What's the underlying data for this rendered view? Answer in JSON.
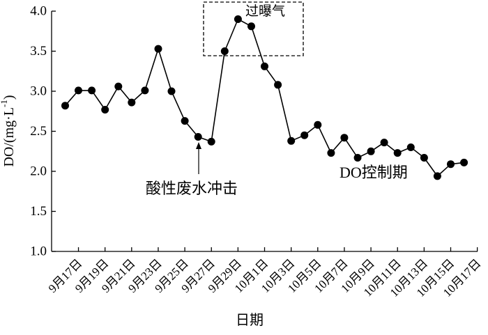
{
  "chart_data": {
    "type": "line",
    "xlabel": "日期",
    "ylabel": {
      "main": "DO/(mg·L",
      "sup": "-1",
      "end": ")"
    },
    "ylim": [
      1.0,
      4.0
    ],
    "grid": false,
    "y_ticks": [
      "1.0",
      "1.5",
      "2.0",
      "2.5",
      "3.0",
      "3.5",
      "4.0"
    ],
    "x_ticks": [
      "9月17日",
      "9月19日",
      "9月21日",
      "9月23日",
      "9月25日",
      "9月27日",
      "9月29日",
      "10月1日",
      "10月3日",
      "10月5日",
      "10月7日",
      "10月9日",
      "10月11日",
      "10月13日",
      "10月15日",
      "10月17日"
    ],
    "x": [
      "9月16日",
      "9月17日",
      "9月18日",
      "9月19日",
      "9月20日",
      "9月21日",
      "9月22日",
      "9月23日",
      "9月24日",
      "9月25日",
      "9月26日",
      "9月27日",
      "9月28日",
      "9月29日",
      "9月30日",
      "10月1日",
      "10月2日",
      "10月3日",
      "10月4日",
      "10月5日",
      "10月6日",
      "10月7日",
      "10月8日",
      "10月9日",
      "10月10日",
      "10月11日",
      "10月12日",
      "10月13日",
      "10月14日",
      "10月15日",
      "10月16日"
    ],
    "y": [
      2.82,
      3.01,
      3.01,
      2.77,
      3.06,
      2.86,
      3.01,
      3.53,
      3.0,
      2.63,
      2.43,
      2.37,
      3.5,
      3.9,
      3.81,
      3.31,
      3.08,
      2.38,
      2.45,
      2.58,
      2.23,
      2.42,
      2.17,
      2.25,
      2.36,
      2.23,
      2.3,
      2.17,
      1.94,
      2.09,
      2.11
    ],
    "annotations": {
      "over_aeration": "过曝气",
      "acid_shock": "酸性废水冲击",
      "do_control": "DO控制期"
    },
    "colors": {
      "line": "#000000",
      "marker": "#000000"
    }
  }
}
